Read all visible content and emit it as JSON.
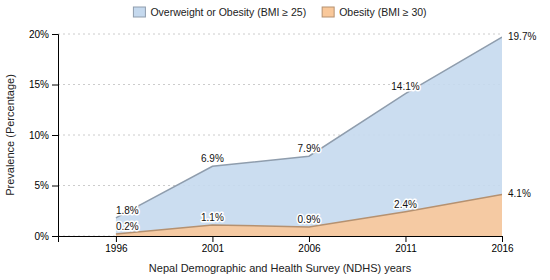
{
  "chart_data": {
    "type": "area",
    "x": [
      1996,
      2001,
      2006,
      2011,
      2016
    ],
    "xlim": [
      1993,
      2016
    ],
    "xticks": [
      1996,
      2001,
      2006,
      2011,
      2016
    ],
    "ylim": [
      0,
      20
    ],
    "yticks": [
      {
        "value": 0,
        "label": "0%"
      },
      {
        "value": 5,
        "label": "5%"
      },
      {
        "value": 10,
        "label": "10%"
      },
      {
        "value": 15,
        "label": "15%"
      },
      {
        "value": 20,
        "label": "20%"
      }
    ],
    "xlabel": "Nepal Demographic and Health Survey (NDHS) years",
    "ylabel": "Prevalence (Percentage)",
    "series": [
      {
        "name": "Overweight or Obesity (BMI ≥ 25)",
        "color": "#c5d9ee",
        "values": [
          1.8,
          6.9,
          7.9,
          14.1,
          19.7
        ],
        "value_labels": [
          "1.8%",
          "6.9%",
          "7.9%",
          "14.1%",
          "19.7%"
        ]
      },
      {
        "name": "Obesity (BMI ≥ 30)",
        "color": "#f9c89a",
        "values": [
          0.2,
          1.1,
          0.9,
          2.4,
          4.1
        ],
        "value_labels": [
          "0.2%",
          "1.1%",
          "0.9%",
          "2.4%",
          "4.1%"
        ]
      }
    ],
    "grid": true,
    "legend": "top",
    "data_labels": true
  }
}
